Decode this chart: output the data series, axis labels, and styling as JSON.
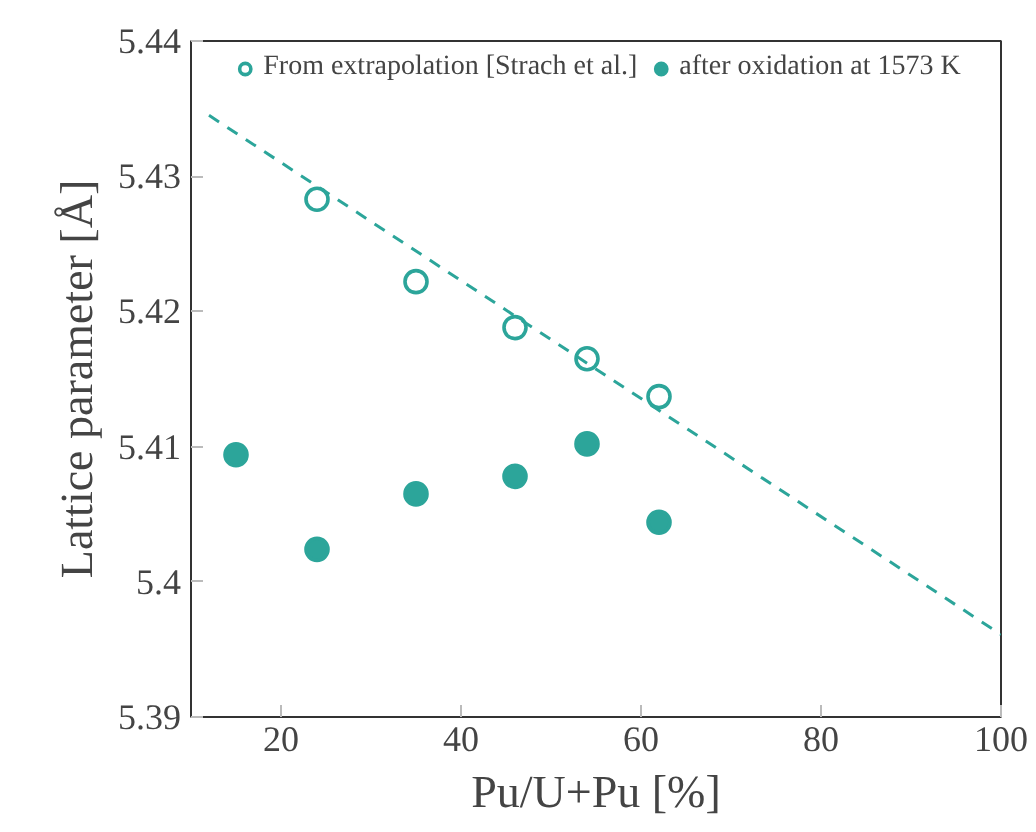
{
  "chart_data": {
    "type": "scatter",
    "xlabel": "Pu/U+Pu [%]",
    "ylabel": "Lattice parameter [Å]",
    "xlim": [
      10,
      100
    ],
    "xticks": [
      20,
      40,
      60,
      80,
      100
    ],
    "ylim": [
      5.39,
      5.44
    ],
    "yticks": [
      5.39,
      {
        "value": 5.4,
        "label": "5.4"
      },
      5.41,
      5.42,
      5.43,
      5.44
    ],
    "grid": false,
    "legend": "top",
    "marker": "circle",
    "series": [
      {
        "name": "From extrapolation [Strach et al.]",
        "color": "#2ca59a",
        "x": [
          24,
          35,
          46,
          54,
          62
        ],
        "values": [
          5.4283,
          5.4222,
          5.4188,
          5.4165,
          5.4137
        ]
      },
      {
        "name": "after oxidation at 1573 K",
        "color": "#2ca59a",
        "x": [
          15,
          24,
          35,
          46,
          54,
          62
        ],
        "values": [
          5.4094,
          5.4024,
          5.4065,
          5.4078,
          5.4102,
          5.4044
        ]
      },
      {
        "type": "line",
        "line_style": "dashed",
        "marker": "none",
        "color": "#2ca59a",
        "x": [
          12,
          100
        ],
        "values": [
          5.4345,
          5.3961
        ]
      }
    ]
  }
}
